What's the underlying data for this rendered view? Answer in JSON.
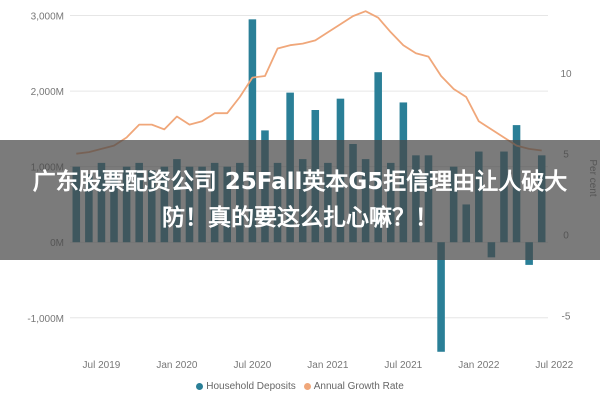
{
  "overlay_title": "广东股票配资公司 25Fall英本G5拒信理由让人破大防！真的要这么扎心嘛？！",
  "colors": {
    "bars": "#2a7f97",
    "line": "#f0a77a",
    "grid": "#e6e6e6",
    "axis_text": "#777777"
  },
  "chart_data": {
    "type": "bar",
    "x_tick_labels": [
      "Jul 2019",
      "Jan 2020",
      "Jul 2020",
      "Jan 2021",
      "Jul 2021",
      "Jan 2022",
      "Jul 2022"
    ],
    "left_axis": {
      "ticks": [
        "3,000M",
        "2,000M",
        "1,000M",
        "0M",
        "-1,000M"
      ],
      "tick_values": [
        3000,
        2000,
        1000,
        0,
        -1000
      ],
      "range": [
        -1400,
        3100
      ]
    },
    "right_axis": {
      "label": "Per cent",
      "ticks": [
        "10",
        "5",
        "0",
        "-5"
      ],
      "tick_values": [
        10,
        5,
        0,
        -5
      ],
      "range": [
        -7,
        14
      ]
    },
    "legend": [
      "Household Deposits",
      "Annual Growth Rate"
    ],
    "series": [
      {
        "name": "Household Deposits",
        "type": "bar",
        "axis": "left",
        "values": [
          1000,
          900,
          1050,
          950,
          1000,
          1050,
          950,
          1000,
          1100,
          1000,
          1000,
          1050,
          1000,
          1050,
          2950,
          1480,
          1050,
          1980,
          1100,
          1750,
          1050,
          1900,
          1300,
          1100,
          2250,
          1050,
          1850,
          1150,
          1150,
          -1450,
          1000,
          500,
          1200,
          -200,
          1200,
          1550,
          -300,
          1150
        ]
      },
      {
        "name": "Annual Growth Rate",
        "type": "line",
        "axis": "right",
        "values": [
          5.0,
          5.1,
          5.3,
          5.5,
          6.0,
          6.8,
          6.8,
          6.5,
          7.3,
          6.8,
          7.0,
          7.5,
          7.5,
          8.5,
          9.7,
          9.8,
          11.5,
          11.7,
          11.8,
          12.0,
          12.5,
          13.0,
          13.5,
          13.8,
          13.4,
          12.5,
          11.7,
          11.2,
          11.0,
          9.8,
          9.0,
          8.5,
          7.0,
          6.5,
          6.0,
          5.5,
          5.3,
          5.2
        ]
      }
    ]
  }
}
